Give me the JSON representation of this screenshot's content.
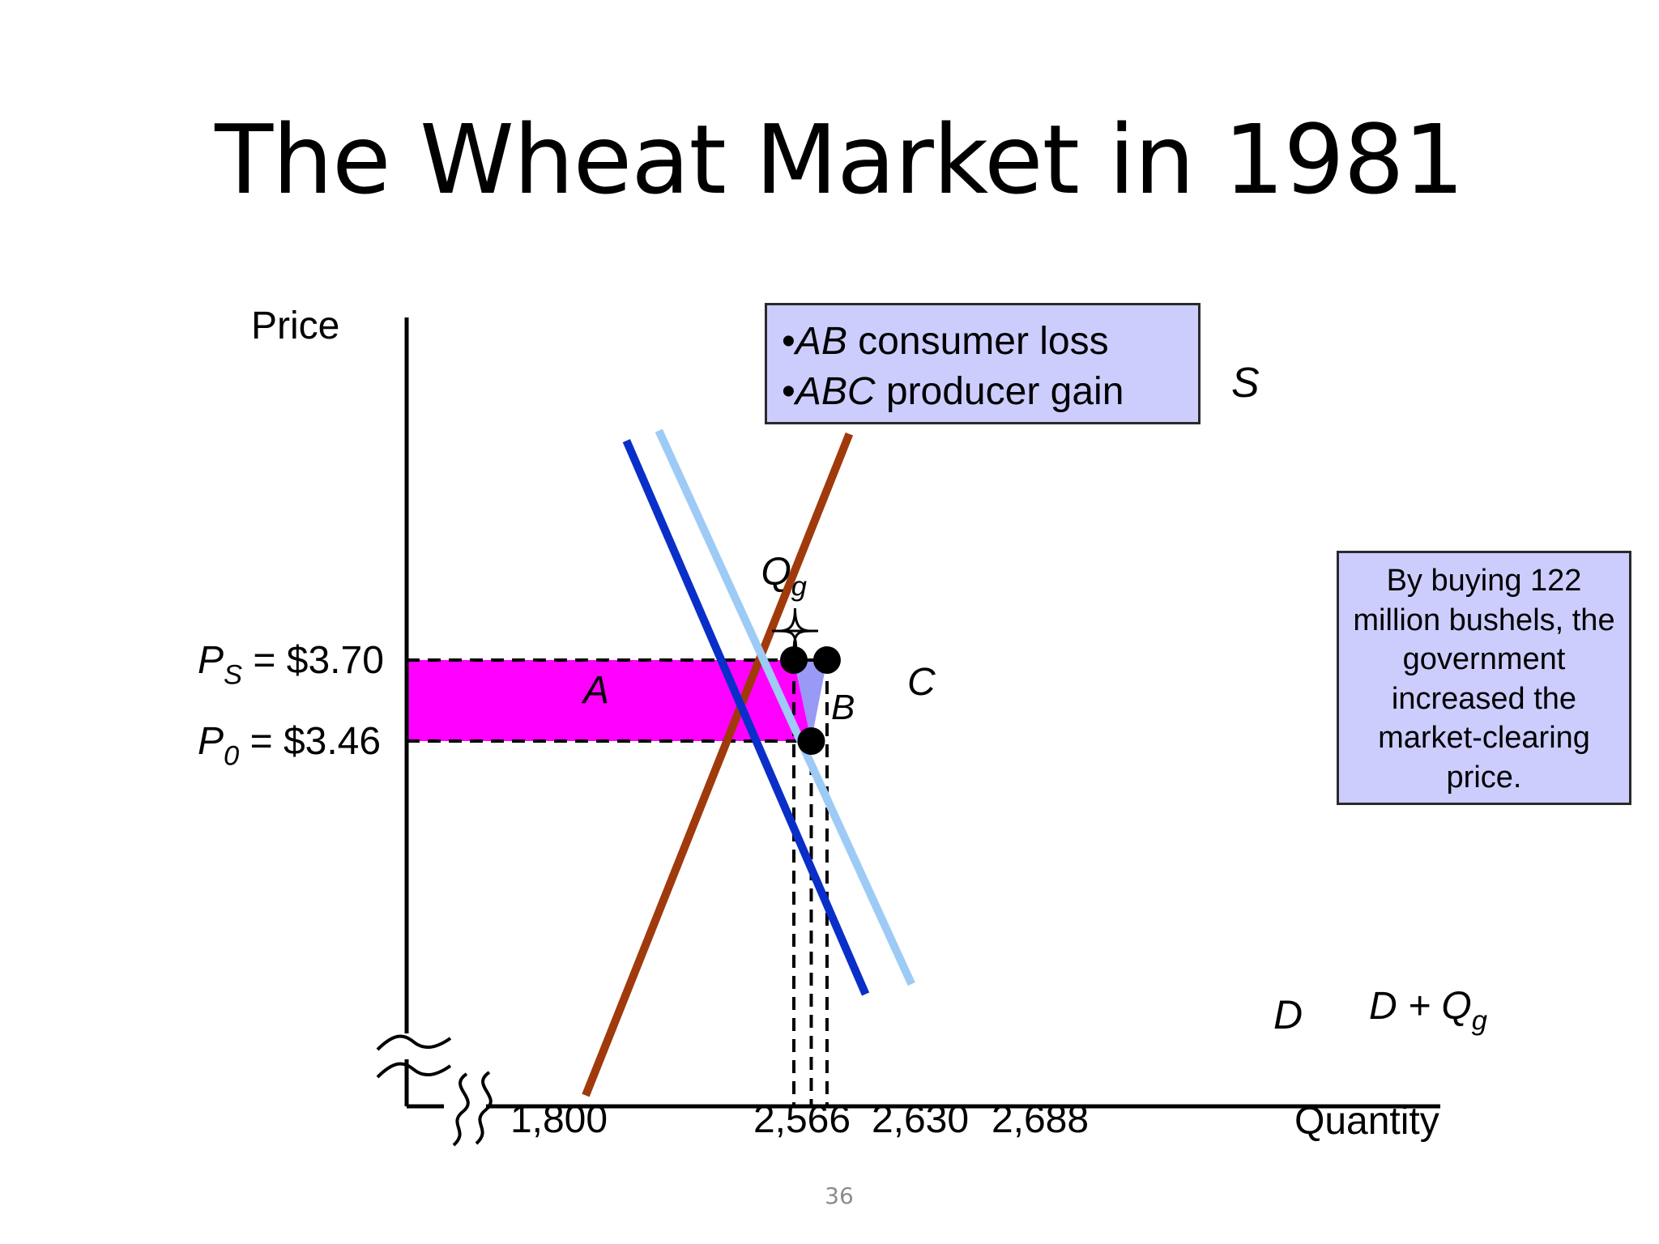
{
  "slide": {
    "title": "The Wheat Market in 1981",
    "page_number": "36",
    "legend": [
      {
        "bullet": "•",
        "italic": "AB",
        "text": " consumer loss"
      },
      {
        "bullet": "•",
        "italic": "ABC",
        "text": " producer gain"
      }
    ],
    "note": "By buying 122 million bushels, the government increased the market-clearing price."
  },
  "colors": {
    "demand": "#0a2fc8",
    "demand_plus": "#9ecbf6",
    "supply": "#a03a0c",
    "area_A": "#ff00ff",
    "area_BC": "#9999f6",
    "box_fill": "#cccdfd"
  },
  "chart_data": {
    "type": "line",
    "title": "The Wheat Market in 1981",
    "xlabel": "Quantity",
    "ylabel": "Price",
    "axis_break": true,
    "x_ticks": [
      {
        "value": 1800,
        "label": "1,800"
      },
      {
        "value": 2566,
        "label": "2,566"
      },
      {
        "value": 2630,
        "label": "2,630"
      },
      {
        "value": 2688,
        "label": "2,688"
      }
    ],
    "y_ticks": [
      {
        "value": 3.7,
        "sym": "P",
        "sub": "S",
        "label": "= $3.70"
      },
      {
        "value": 3.46,
        "sym": "P",
        "sub": "0",
        "label": "= $3.46"
      }
    ],
    "series": [
      {
        "name": "S",
        "key": "supply",
        "points": [
          [
            1800,
            2.41
          ],
          [
            2770,
            4.37
          ]
        ]
      },
      {
        "name": "D",
        "key": "demand",
        "points": [
          [
            1950,
            4.35
          ],
          [
            2830,
            2.71
          ]
        ]
      },
      {
        "name": "D + Q",
        "sub": "g",
        "key": "demand_plus",
        "points": [
          [
            2069,
            4.38
          ],
          [
            2999,
            2.74
          ]
        ]
      }
    ],
    "points": [
      {
        "x": 2566,
        "y": 3.7
      },
      {
        "x": 2630,
        "y": 3.46
      },
      {
        "x": 2688,
        "y": 3.7
      }
    ],
    "areas": [
      {
        "label": "A",
        "description": "rectangle between P0 and PS from axis to Qd"
      },
      {
        "label": "B",
        "description": "triangle under D between Qd and Q0"
      },
      {
        "label": "C",
        "description": "triangle between D and S from Q0 up to PS"
      }
    ],
    "brace_label": {
      "sym": "Q",
      "sub": "g"
    }
  }
}
